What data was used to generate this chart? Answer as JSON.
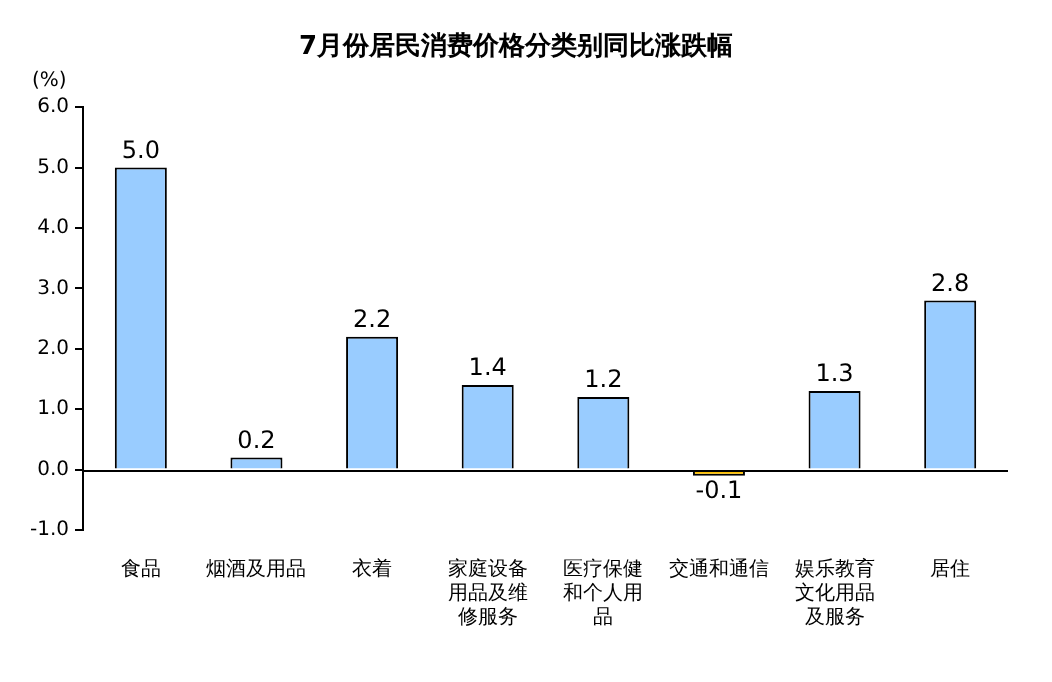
{
  "chart_data": {
    "type": "bar",
    "title": "7月份居民消费价格分类别同比涨跌幅",
    "ylabel": "(%)",
    "categories": [
      "食品",
      "烟酒及用品",
      "衣着",
      "家庭设备用品及维修服务",
      "医疗保健和个人用品",
      "交通和通信",
      "娱乐教育文化用品及服务",
      "居住"
    ],
    "values": [
      5.0,
      0.2,
      2.2,
      1.4,
      1.2,
      -0.1,
      1.3,
      2.8
    ],
    "value_labels": [
      "5.0",
      "0.2",
      "2.2",
      "1.4",
      "1.2",
      "-0.1",
      "1.3",
      "2.8"
    ],
    "colors": [
      "#99ccff",
      "#99ccff",
      "#99ccff",
      "#99ccff",
      "#99ccff",
      "#ffc000",
      "#99ccff",
      "#99ccff"
    ],
    "ylim": [
      -1,
      6
    ],
    "yticks": [
      {
        "value": -1,
        "label": "-1.0"
      },
      {
        "value": 0,
        "label": "0.0"
      },
      {
        "value": 1,
        "label": "1.0"
      },
      {
        "value": 2,
        "label": "2.0"
      },
      {
        "value": 3,
        "label": "3.0"
      },
      {
        "value": 4,
        "label": "4.0"
      },
      {
        "value": 5,
        "label": "5.0"
      },
      {
        "value": 6,
        "label": "6.0"
      }
    ],
    "ref_lines": [
      {
        "axis": "y",
        "value": 0,
        "color": "#000000"
      }
    ],
    "grid": false,
    "legend": false
  }
}
